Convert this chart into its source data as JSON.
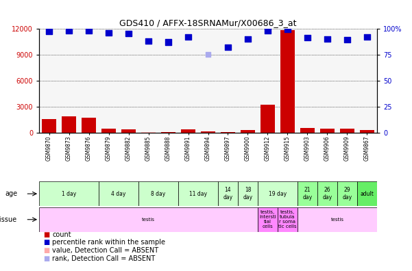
{
  "title": "GDS410 / AFFX-18SRNAMur/X00686_3_at",
  "samples": [
    "GSM9870",
    "GSM9873",
    "GSM9876",
    "GSM9879",
    "GSM9882",
    "GSM9885",
    "GSM9888",
    "GSM9891",
    "GSM9894",
    "GSM9897",
    "GSM9900",
    "GSM9912",
    "GSM9915",
    "GSM9903",
    "GSM9906",
    "GSM9909",
    "GSM9867"
  ],
  "count_values": [
    1600,
    1900,
    1700,
    500,
    400,
    250,
    100,
    400,
    150,
    100,
    300,
    3200,
    11800,
    550,
    450,
    450,
    350
  ],
  "absent_count_idx": [
    5
  ],
  "absent_count_value": 100,
  "rank_values": [
    97,
    98,
    98,
    96,
    95,
    88,
    87,
    92,
    90,
    82,
    90,
    98,
    99,
    91,
    90,
    89,
    92
  ],
  "absent_rank_idx": [
    8
  ],
  "absent_rank_value": 75,
  "ylim_left": [
    0,
    12000
  ],
  "ylim_right": [
    0,
    100
  ],
  "yticks_left": [
    0,
    3000,
    6000,
    9000,
    12000
  ],
  "yticks_right": [
    0,
    25,
    50,
    75,
    100
  ],
  "age_groups": [
    {
      "label": "1 day",
      "start": 0,
      "end": 3,
      "color": "#ccffcc"
    },
    {
      "label": "4 day",
      "start": 3,
      "end": 5,
      "color": "#ccffcc"
    },
    {
      "label": "8 day",
      "start": 5,
      "end": 7,
      "color": "#ccffcc"
    },
    {
      "label": "11 day",
      "start": 7,
      "end": 9,
      "color": "#ccffcc"
    },
    {
      "label": "14\nday",
      "start": 9,
      "end": 10,
      "color": "#ccffcc"
    },
    {
      "label": "18\nday",
      "start": 10,
      "end": 11,
      "color": "#ccffcc"
    },
    {
      "label": "19 day",
      "start": 11,
      "end": 13,
      "color": "#ccffcc"
    },
    {
      "label": "21\nday",
      "start": 13,
      "end": 14,
      "color": "#99ff99"
    },
    {
      "label": "26\nday",
      "start": 14,
      "end": 15,
      "color": "#99ff99"
    },
    {
      "label": "29\nday",
      "start": 15,
      "end": 16,
      "color": "#99ff99"
    },
    {
      "label": "adult",
      "start": 16,
      "end": 17,
      "color": "#66ee66"
    }
  ],
  "tissue_groups": [
    {
      "label": "testis",
      "start": 0,
      "end": 11,
      "color": "#ffccff"
    },
    {
      "label": "testis,\nintersti\ntial\ncells",
      "start": 11,
      "end": 12,
      "color": "#ff88ff"
    },
    {
      "label": "testis,\ntubula\nr soma\ntic cells",
      "start": 12,
      "end": 13,
      "color": "#ff88ff"
    },
    {
      "label": "testis",
      "start": 13,
      "end": 17,
      "color": "#ffccff"
    }
  ],
  "bar_color": "#cc0000",
  "absent_bar_color": "#ffaaaa",
  "rank_color": "#0000cc",
  "absent_rank_color": "#aaaaee",
  "bg_color": "#ffffff",
  "label_color_left": "#cc0000",
  "label_color_right": "#0000cc",
  "tick_bg_color": "#dddddd"
}
